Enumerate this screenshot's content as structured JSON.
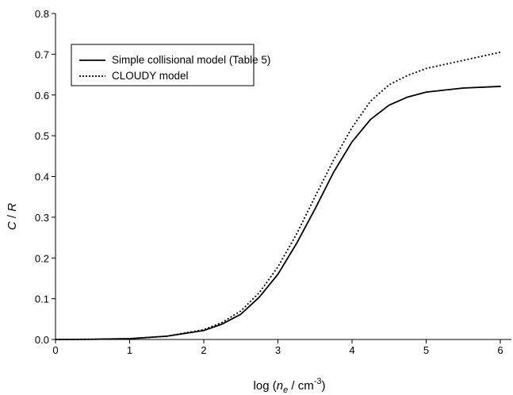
{
  "chart_data": {
    "type": "line",
    "title": "",
    "xlabel": {
      "prefix": "log (",
      "main": "n",
      "sub": "e",
      "mid": " / cm",
      "sup": "-3",
      "suffix": ")"
    },
    "ylabel": {
      "c": "C",
      "sep": " / ",
      "r": "R"
    },
    "xlim": [
      0,
      6.15
    ],
    "ylim": [
      0,
      0.8
    ],
    "x_ticks": [
      "0",
      "1",
      "2",
      "3",
      "4",
      "5",
      "6"
    ],
    "y_ticks": [
      "0.0",
      "0.1",
      "0.2",
      "0.3",
      "0.4",
      "0.5",
      "0.6",
      "0.7",
      "0.8"
    ],
    "grid": false,
    "legend_position": "top-left",
    "series": [
      {
        "name": "Simple collisional model (Table 5)",
        "style": "solid",
        "color": "#000000",
        "x": [
          0,
          0.5,
          1.0,
          1.5,
          2.0,
          2.25,
          2.5,
          2.75,
          3.0,
          3.25,
          3.5,
          3.75,
          4.0,
          4.25,
          4.5,
          4.75,
          5.0,
          5.5,
          6.0
        ],
        "y": [
          0.0,
          0.0005,
          0.002,
          0.008,
          0.022,
          0.038,
          0.062,
          0.104,
          0.16,
          0.235,
          0.32,
          0.41,
          0.485,
          0.54,
          0.575,
          0.595,
          0.607,
          0.617,
          0.621
        ]
      },
      {
        "name": "CLOUDY model",
        "style": "dotted",
        "color": "#000000",
        "x": [
          0,
          0.5,
          1.0,
          1.5,
          2.0,
          2.25,
          2.5,
          2.75,
          3.0,
          3.25,
          3.5,
          3.75,
          4.0,
          4.25,
          4.5,
          4.75,
          5.0,
          5.5,
          6.0
        ],
        "y": [
          0.0,
          0.0005,
          0.002,
          0.008,
          0.024,
          0.042,
          0.07,
          0.115,
          0.178,
          0.258,
          0.35,
          0.44,
          0.52,
          0.585,
          0.625,
          0.648,
          0.665,
          0.685,
          0.705
        ]
      }
    ]
  }
}
